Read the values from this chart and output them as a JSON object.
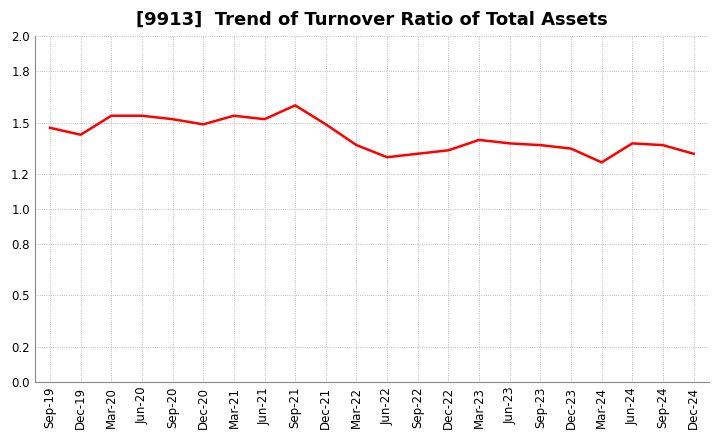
{
  "title": "[9913]  Trend of Turnover Ratio of Total Assets",
  "x_labels": [
    "Sep-19",
    "Dec-19",
    "Mar-20",
    "Jun-20",
    "Sep-20",
    "Dec-20",
    "Mar-21",
    "Jun-21",
    "Sep-21",
    "Dec-21",
    "Mar-22",
    "Jun-22",
    "Sep-22",
    "Dec-22",
    "Mar-23",
    "Jun-23",
    "Sep-23",
    "Dec-23",
    "Mar-24",
    "Jun-24",
    "Sep-24",
    "Dec-24"
  ],
  "y_values": [
    1.47,
    1.43,
    1.54,
    1.54,
    1.52,
    1.49,
    1.54,
    1.52,
    1.6,
    1.49,
    1.37,
    1.3,
    1.32,
    1.34,
    1.4,
    1.38,
    1.37,
    1.35,
    1.27,
    1.38,
    1.37,
    1.32
  ],
  "line_color": "#FF0000",
  "line_width": 1.8,
  "ylim": [
    0.0,
    2.0
  ],
  "yticks": [
    0.0,
    0.2,
    0.5,
    0.8,
    1.0,
    1.2,
    1.5,
    1.8,
    2.0
  ],
  "background_color": "#ffffff",
  "grid_color": "#aaaaaa",
  "title_fontsize": 13,
  "tick_fontsize": 8.5
}
